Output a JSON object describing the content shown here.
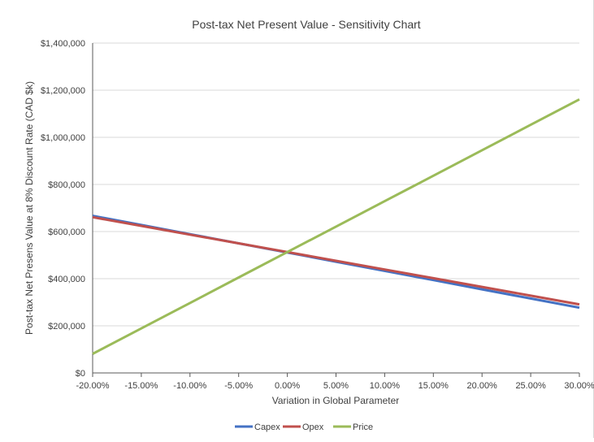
{
  "chart_data": {
    "type": "line",
    "title": "Post-tax Net Present Value - Sensitivity Chart",
    "xlabel": "Variation in Global Parameter",
    "ylabel": "Post-tax Net Presens Value at 8% Discount Rate (CAD $k)",
    "x": [
      -20,
      -15,
      -10,
      -5,
      0,
      5,
      10,
      15,
      20,
      25,
      30
    ],
    "x_tick_labels": [
      "-20.00%",
      "-15.00%",
      "-10.00%",
      "-5.00%",
      "0.00%",
      "5.00%",
      "10.00%",
      "15.00%",
      "20.00%",
      "25.00%",
      "30.00%"
    ],
    "y_tick_values": [
      0,
      200000,
      400000,
      600000,
      800000,
      1000000,
      1200000,
      1400000
    ],
    "y_tick_labels": [
      "$0",
      "$200,000",
      "$400,000",
      "$600,000",
      "$800,000",
      "$1,000,000",
      "$1,200,000",
      "$1,400,000"
    ],
    "xlim": [
      -20,
      30
    ],
    "ylim": [
      0,
      1400000
    ],
    "grid": "horizontal",
    "legend_position": "bottom",
    "series": [
      {
        "name": "Capex",
        "color": "#4472c4",
        "values": [
          667000,
          628000,
          589000,
          550000,
          511000,
          472000,
          433000,
          394000,
          355000,
          316000,
          277000
        ]
      },
      {
        "name": "Opex",
        "color": "#c0504d",
        "values": [
          661000,
          624000,
          587000,
          550000,
          513000,
          476000,
          439000,
          402000,
          365000,
          328000,
          291000
        ]
      },
      {
        "name": "Price",
        "color": "#9bbb59",
        "values": [
          81000,
          189000,
          297000,
          405000,
          513000,
          621000,
          729000,
          837000,
          945000,
          1053000,
          1161000
        ]
      }
    ]
  }
}
